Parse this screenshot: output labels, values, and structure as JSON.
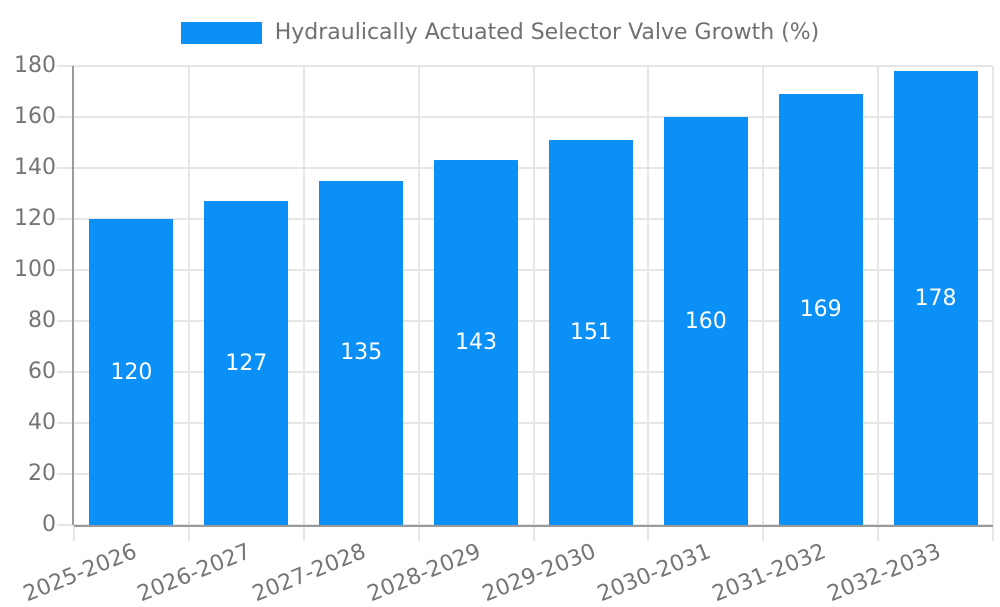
{
  "chart_data": {
    "type": "bar",
    "title": "Hydraulically Actuated Selector Valve Growth (%)",
    "categories": [
      "2025-2026",
      "2026-2027",
      "2027-2028",
      "2028-2029",
      "2029-2030",
      "2030-2031",
      "2031-2032",
      "2032-2033"
    ],
    "values": [
      120,
      127,
      135,
      143,
      151,
      160,
      169,
      178
    ],
    "xlabel": "",
    "ylabel": "",
    "ylim": [
      0,
      180
    ],
    "yticks": [
      0,
      20,
      40,
      60,
      80,
      100,
      120,
      140,
      160,
      180
    ],
    "grid": "both",
    "legend_position": "top-center",
    "value_label_style": "white, centered inside bar",
    "x_tick_rotation_deg": 22
  },
  "colors": {
    "bar": "#0a90f7",
    "value_label": "#ffffff",
    "gridline": "#e6e6e6",
    "axis_line": "#9a9a9a",
    "tick_label": "#757575",
    "legend_text": "#707070",
    "background": "#ffffff"
  }
}
